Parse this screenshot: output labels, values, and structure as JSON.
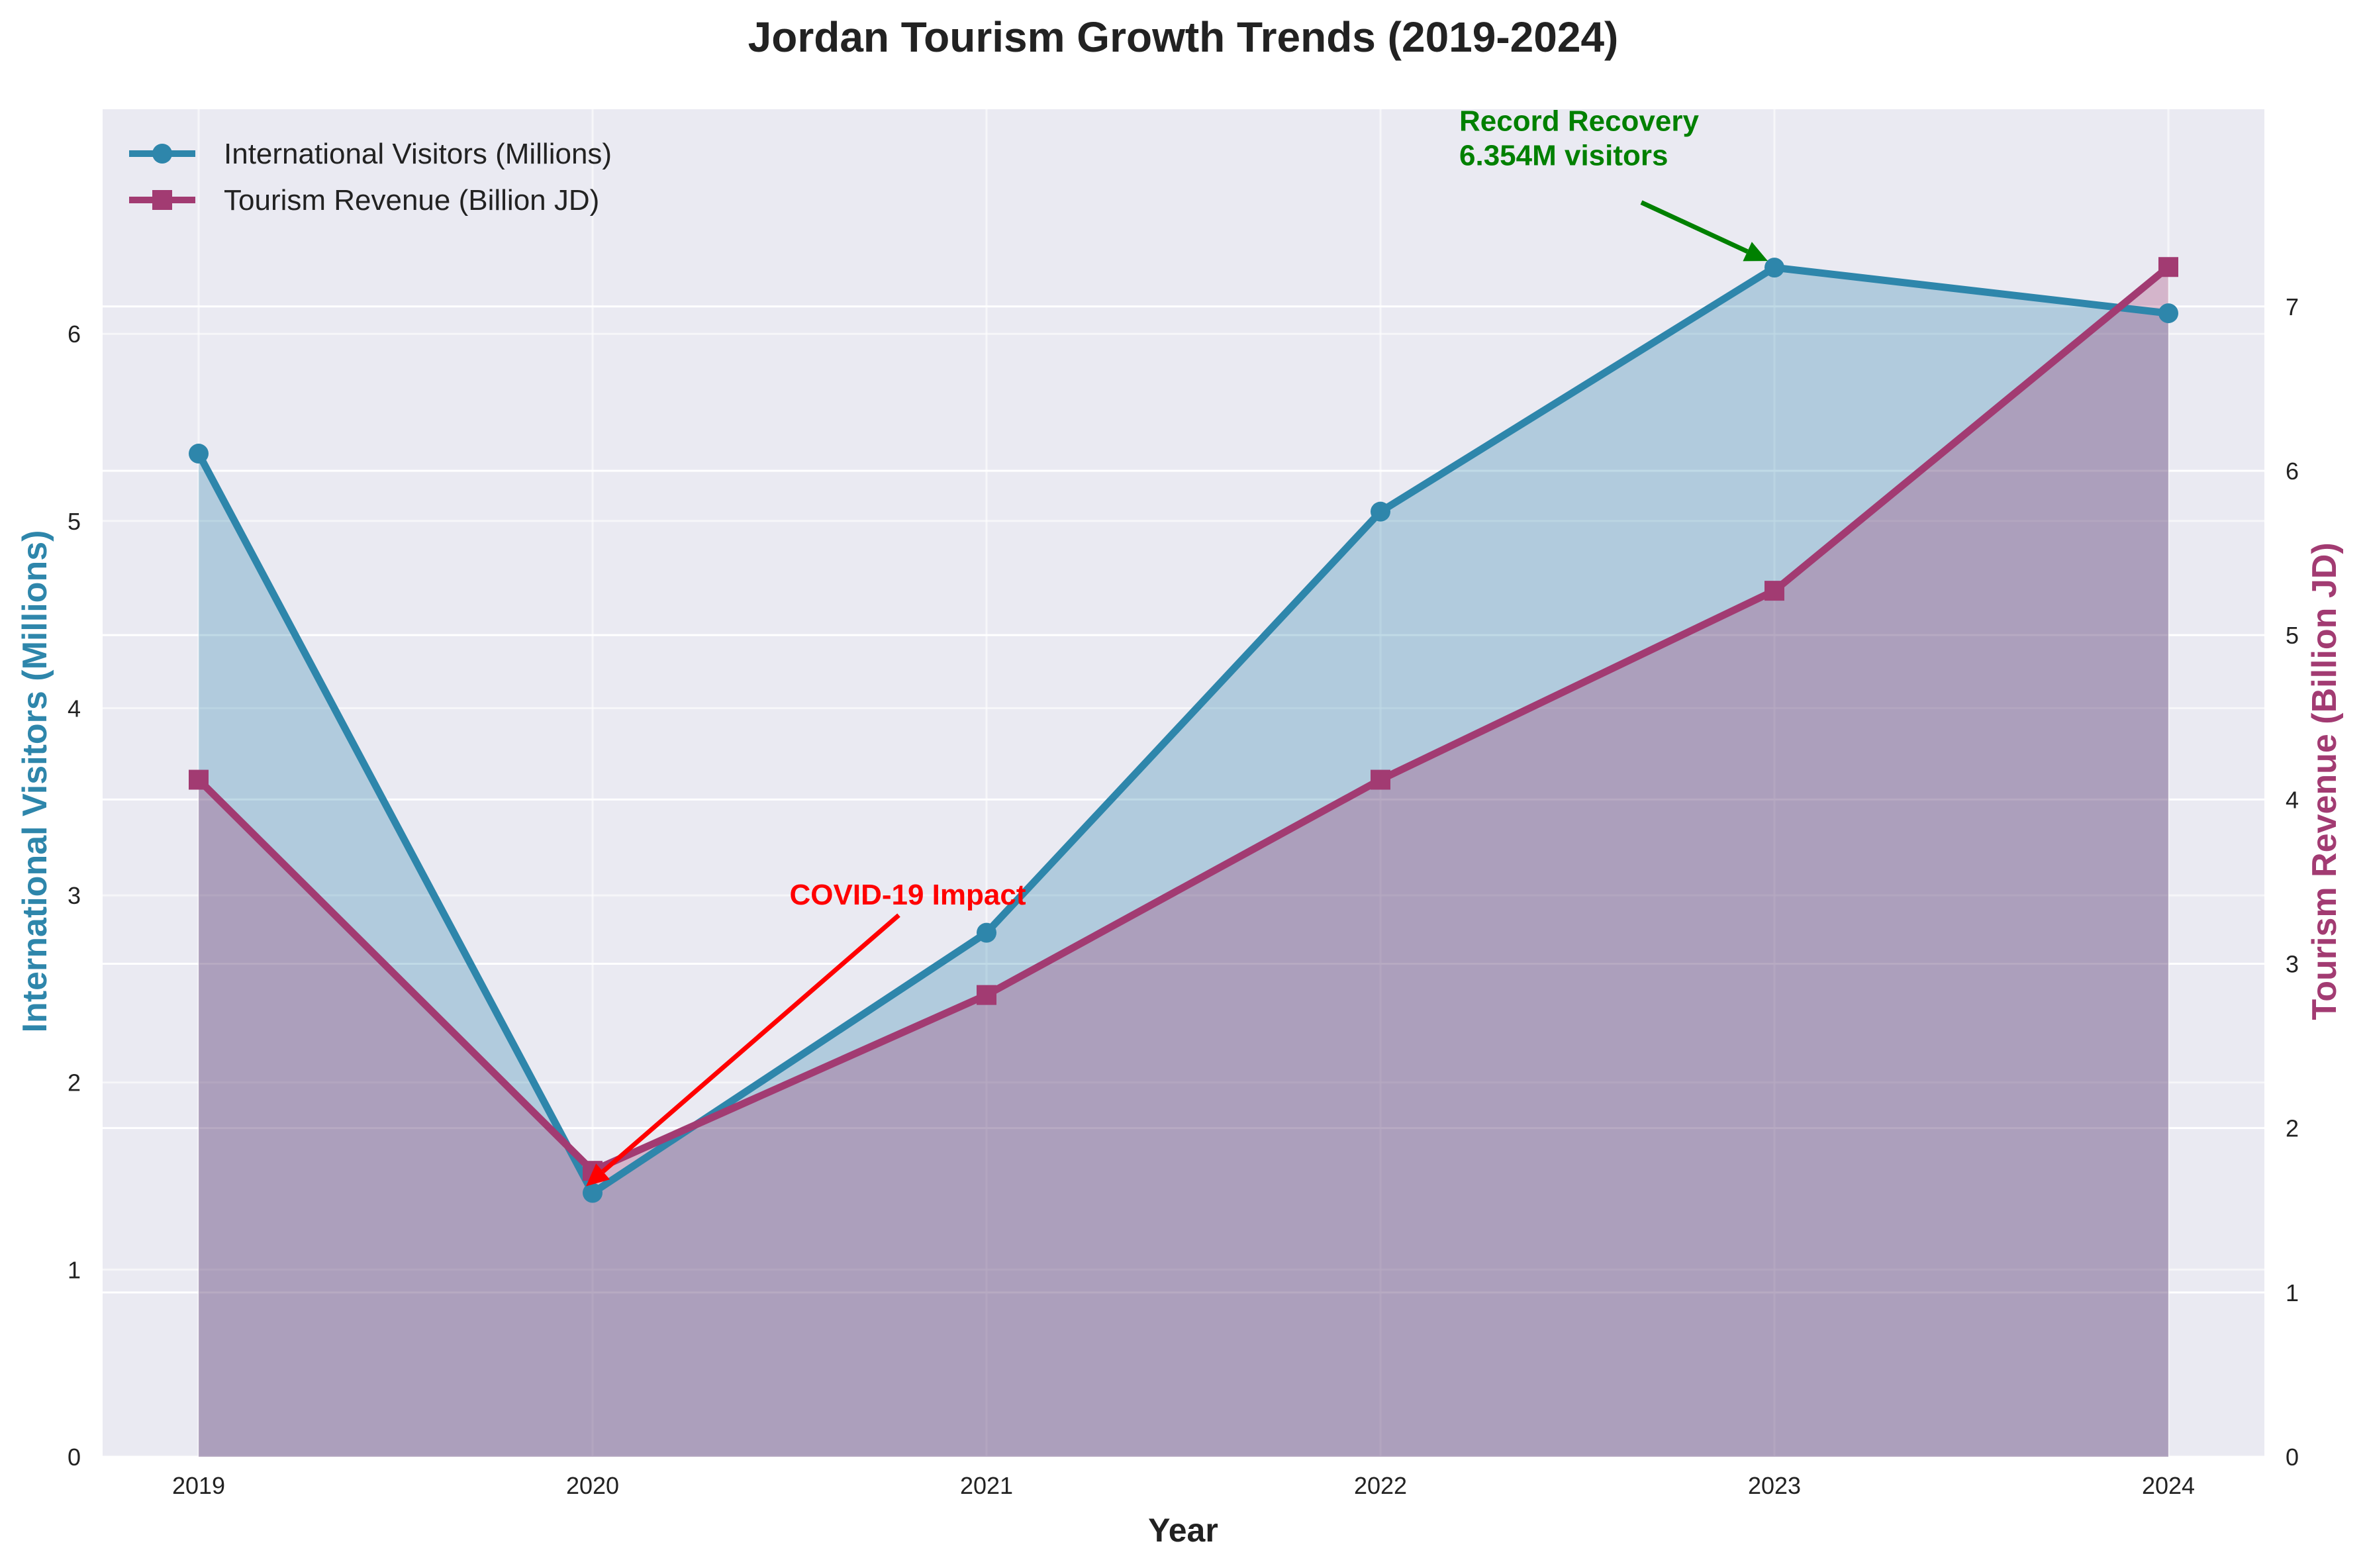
{
  "chart_data": {
    "type": "line",
    "title": "Jordan Tourism Growth Trends (2019-2024)",
    "xlabel": "Year",
    "categories": [
      "2019",
      "2020",
      "2021",
      "2022",
      "2023",
      "2024"
    ],
    "x": [
      2019,
      2020,
      2021,
      2022,
      2023,
      2024
    ],
    "y_left": {
      "label": "International Visitors (Millions)",
      "ylim": [
        0,
        7.2
      ],
      "ticks": [
        0,
        1,
        2,
        3,
        4,
        5,
        6
      ]
    },
    "y_right": {
      "label": "Tourism Revenue (Billion JD)",
      "ylim": [
        0,
        8.2
      ],
      "ticks": [
        0,
        1,
        2,
        3,
        4,
        5,
        6,
        7
      ]
    },
    "series": [
      {
        "name": "International Visitors (Millions)",
        "axis": "left",
        "marker": "circle",
        "color": "#2e86ab",
        "values": [
          5.36,
          1.41,
          2.8,
          5.05,
          6.354,
          6.11
        ]
      },
      {
        "name": "Tourism Revenue (Billion JD)",
        "axis": "right",
        "marker": "square",
        "color": "#a23b72",
        "values": [
          4.12,
          1.74,
          2.81,
          4.12,
          5.27,
          7.24
        ]
      }
    ],
    "grid": true,
    "legend": "top-left",
    "annotations": [
      {
        "text": "COVID-19 Impact",
        "color": "#ff0000",
        "point_x": 2020,
        "point_y": 1.41,
        "text_x": 2020.5,
        "text_y": 3.0,
        "axis": "left"
      },
      {
        "lines": [
          "Record Recovery",
          "6.354M visitors"
        ],
        "color": "#008000",
        "point_x": 2023,
        "point_y": 6.354,
        "text_x": 2022.2,
        "text_y": 6.95,
        "axis": "left"
      }
    ]
  },
  "colors": {
    "plot_background": "#eaeaf2",
    "grid": "#ffffff",
    "visitors": "#2e86ab",
    "revenue": "#a23b72"
  }
}
